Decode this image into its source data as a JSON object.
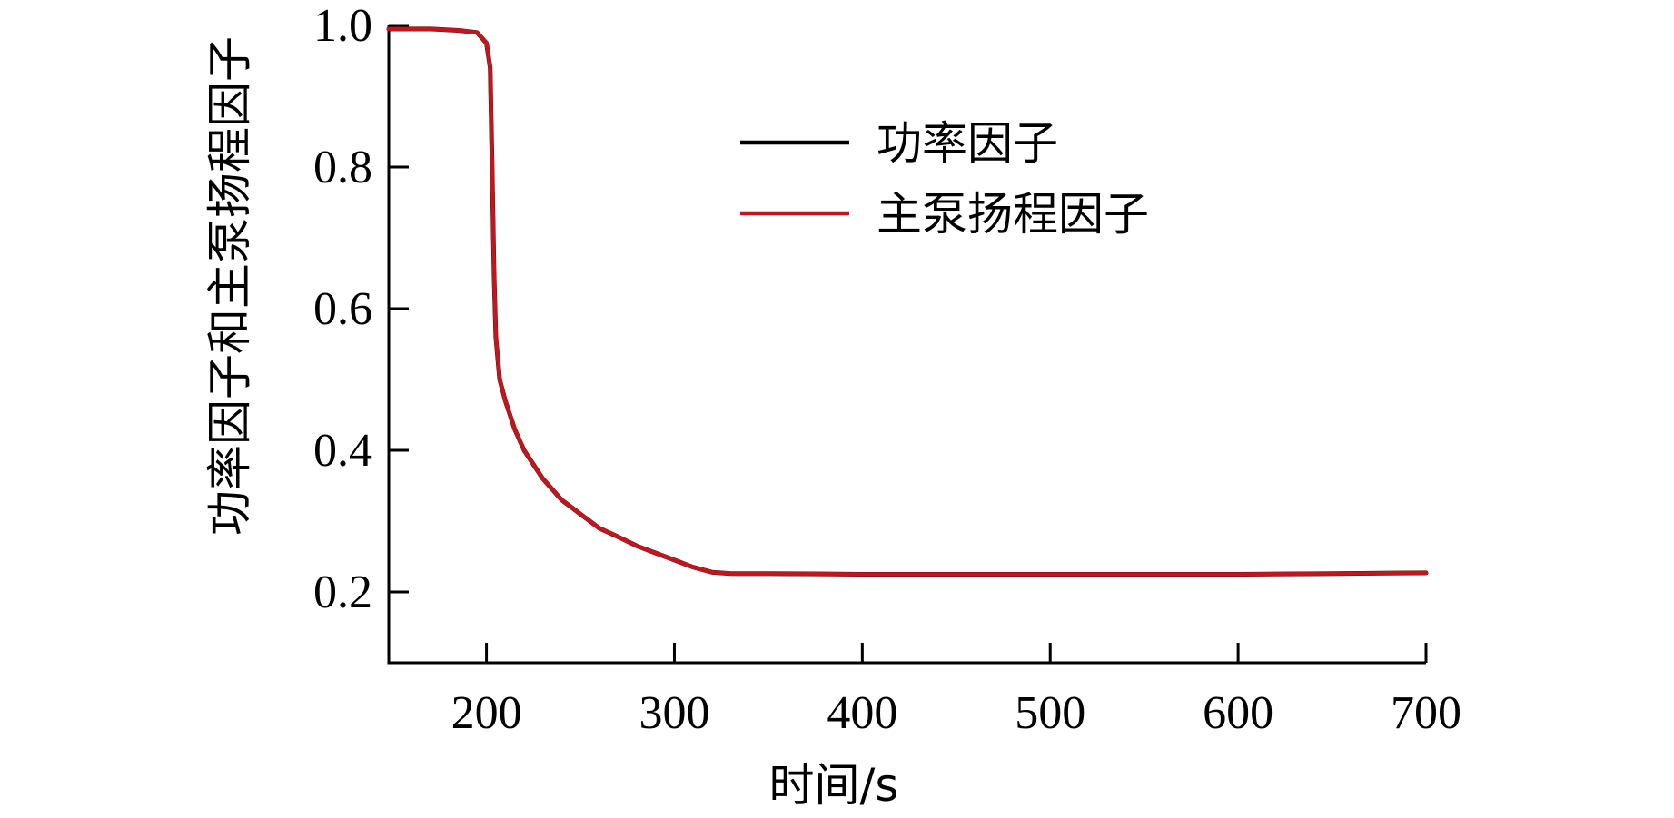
{
  "chart_data": {
    "type": "line",
    "xlabel": "时间/s",
    "ylabel": "功率因子和主泵扬程因子",
    "xlim": [
      148,
      700
    ],
    "ylim": [
      0.1,
      1.0
    ],
    "xticks": [
      200,
      300,
      400,
      500,
      600,
      700
    ],
    "yticks": [
      0.2,
      0.4,
      0.6,
      0.8,
      1.0
    ],
    "ytick_labels": [
      "0.2",
      "0.4",
      "0.6",
      "0.8",
      "1.0"
    ],
    "xtick_labels": [
      "200",
      "300",
      "400",
      "500",
      "600",
      "700"
    ],
    "legend_position": "top-right",
    "series": [
      {
        "name": "功率因子",
        "color": "#000000",
        "x": [
          148,
          170,
          185,
          195,
          200,
          202,
          203,
          204,
          205,
          207,
          210,
          215,
          220,
          230,
          240,
          250,
          260,
          270,
          280,
          290,
          300,
          310,
          320,
          330,
          350,
          400,
          450,
          500,
          550,
          600,
          650,
          700
        ],
        "y": [
          0.995,
          0.995,
          0.993,
          0.99,
          0.975,
          0.94,
          0.8,
          0.65,
          0.56,
          0.5,
          0.47,
          0.43,
          0.4,
          0.36,
          0.33,
          0.31,
          0.29,
          0.278,
          0.265,
          0.255,
          0.245,
          0.235,
          0.228,
          0.226,
          0.226,
          0.225,
          0.225,
          0.225,
          0.225,
          0.225,
          0.226,
          0.227
        ]
      },
      {
        "name": "主泵扬程因子",
        "color": "#c0161c",
        "x": [
          148,
          170,
          185,
          195,
          200,
          202,
          203,
          204,
          205,
          207,
          210,
          215,
          220,
          230,
          240,
          250,
          260,
          270,
          280,
          290,
          300,
          310,
          320,
          330,
          350,
          400,
          450,
          500,
          550,
          600,
          650,
          700
        ],
        "y": [
          0.995,
          0.995,
          0.993,
          0.99,
          0.975,
          0.94,
          0.8,
          0.65,
          0.56,
          0.5,
          0.47,
          0.43,
          0.4,
          0.36,
          0.33,
          0.31,
          0.29,
          0.278,
          0.265,
          0.255,
          0.245,
          0.235,
          0.228,
          0.226,
          0.226,
          0.225,
          0.225,
          0.225,
          0.225,
          0.225,
          0.226,
          0.227
        ]
      }
    ]
  }
}
